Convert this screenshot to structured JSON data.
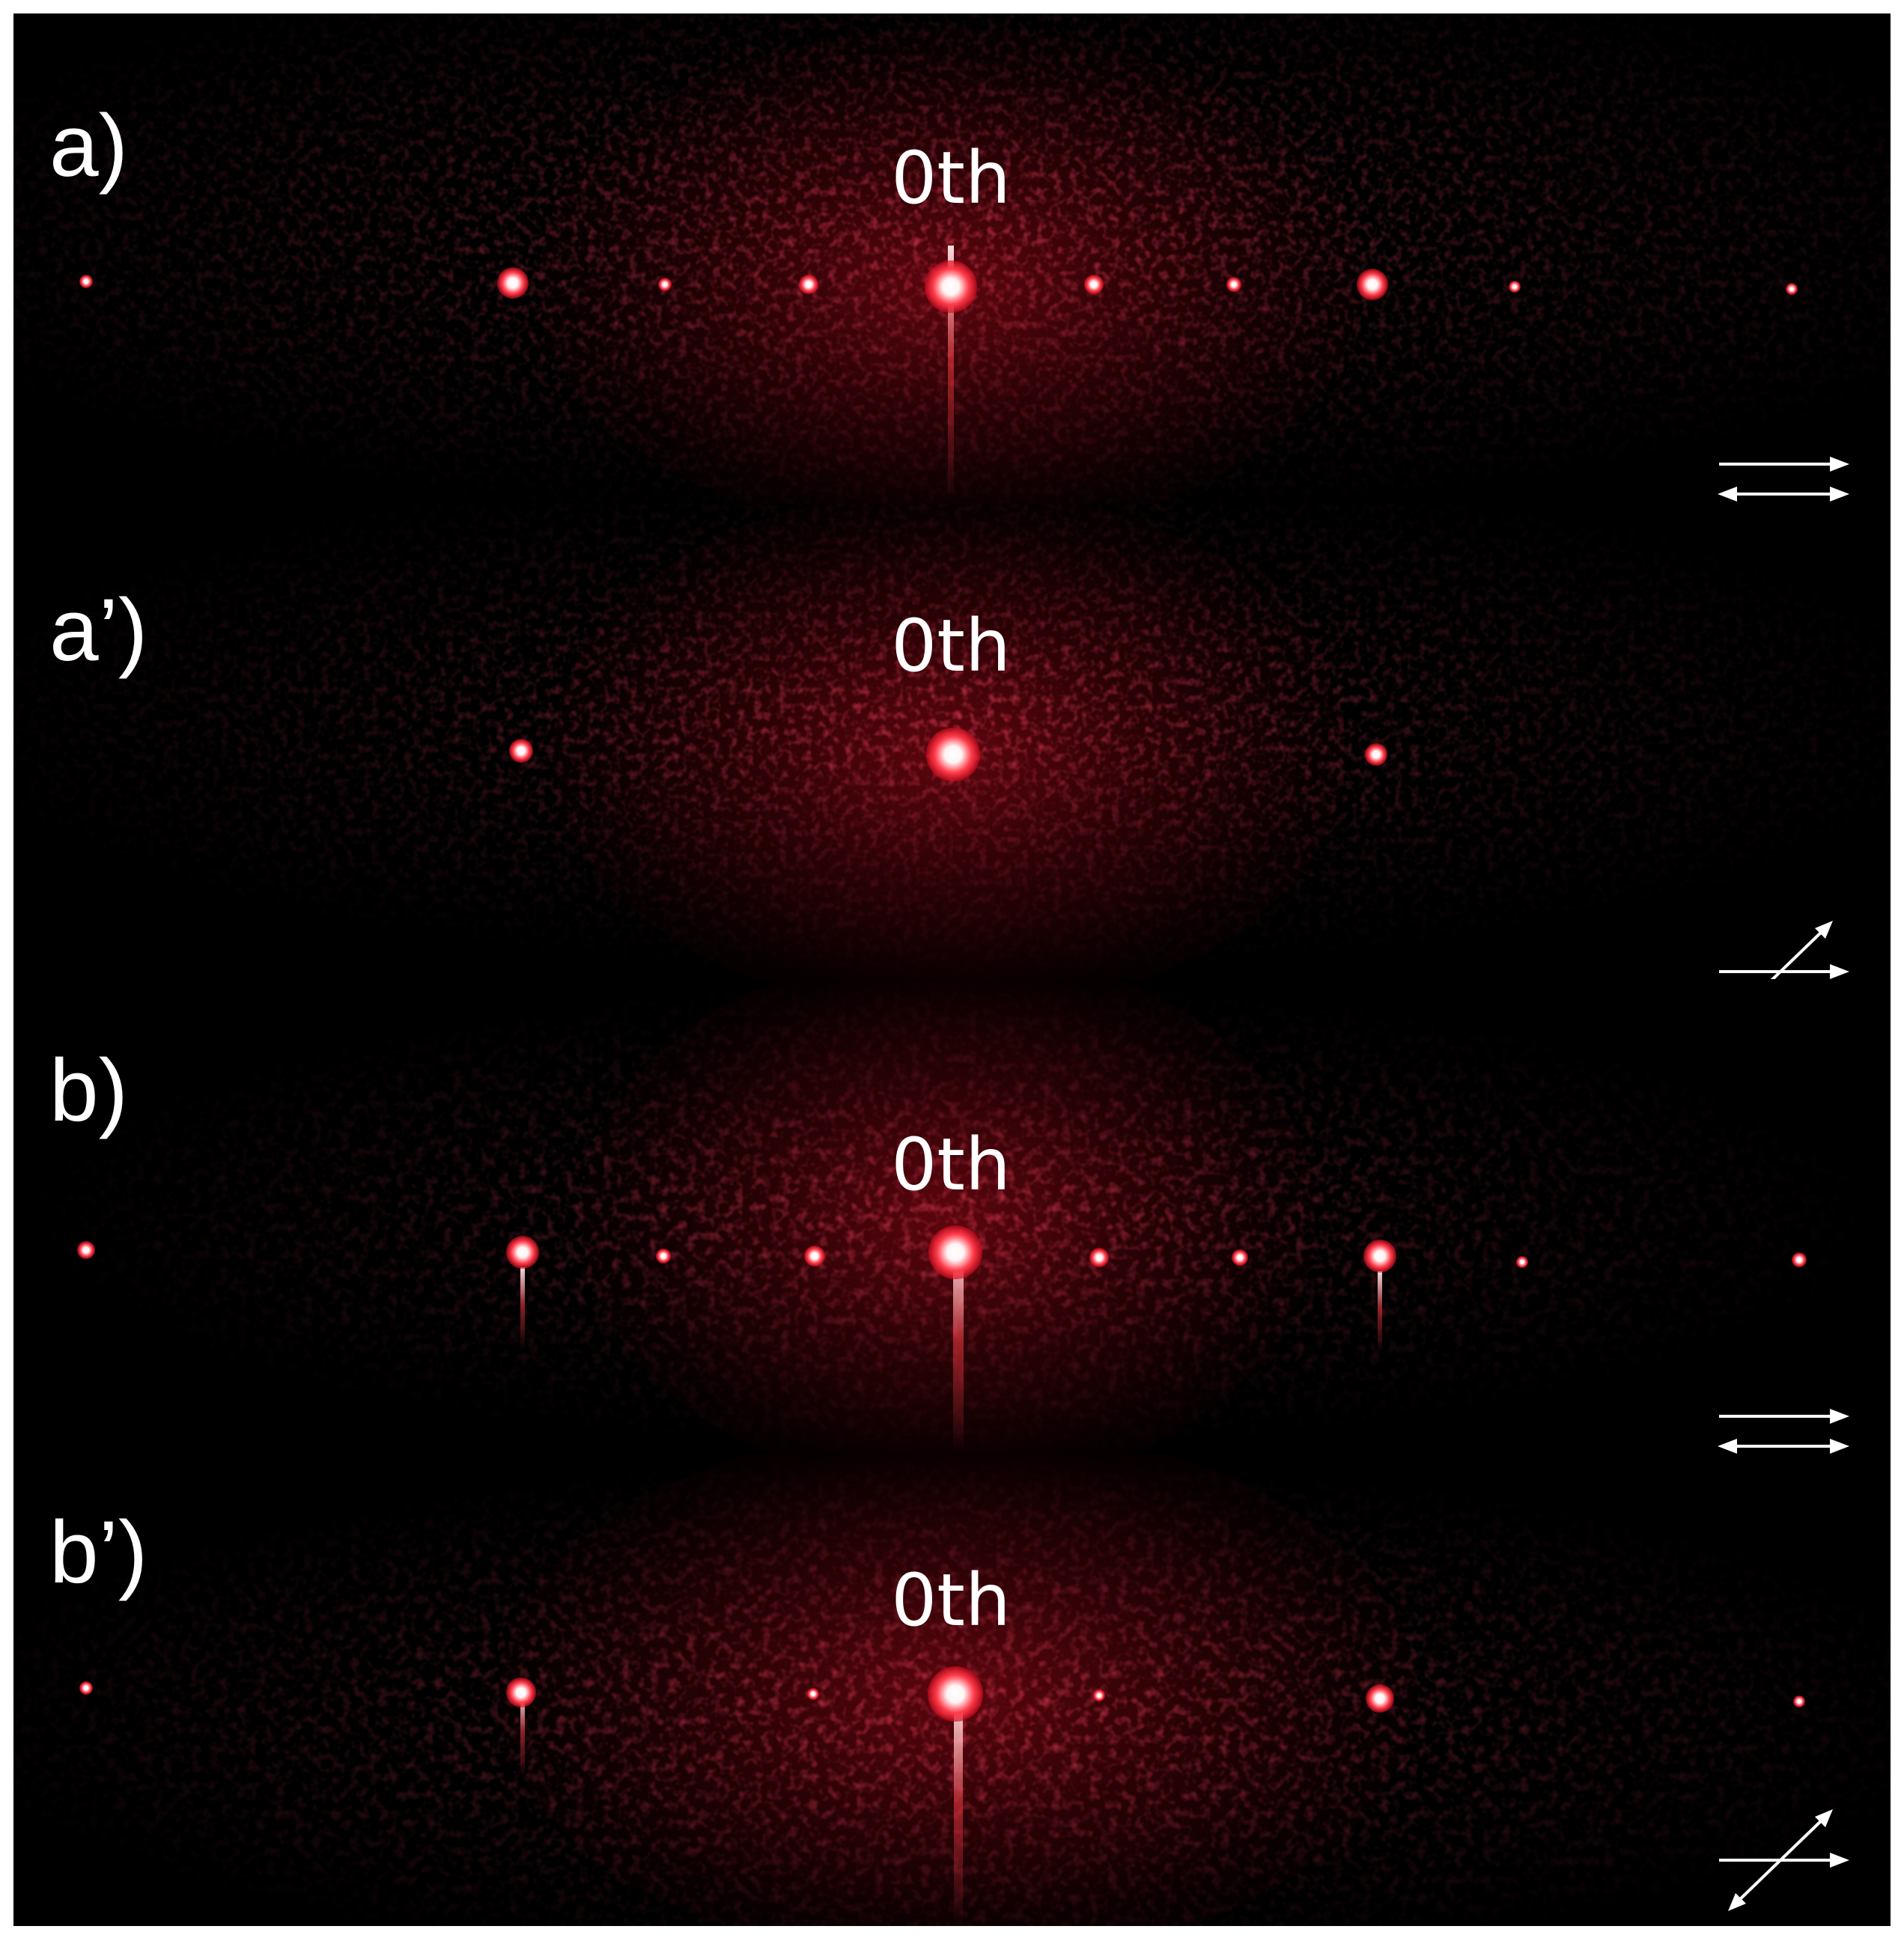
{
  "panels": [
    {
      "id": "a",
      "label": "a)",
      "order_label": "0th",
      "polarizer": "parallel"
    },
    {
      "id": "a2",
      "label": "a’)",
      "order_label": "0th",
      "polarizer": "crossed-45"
    },
    {
      "id": "b",
      "label": "b)",
      "order_label": "0th",
      "polarizer": "parallel"
    },
    {
      "id": "b2",
      "label": "b’)",
      "order_label": "0th",
      "polarizer": "crossed-45"
    }
  ],
  "colors": {
    "background": "#000000",
    "speckle": "#c8101e",
    "spot_core": "#ffffff",
    "text": "#ffffff"
  },
  "icons": {
    "parallel": "parallel-double-arrows-icon",
    "crossed": "crossed-double-arrows-icon"
  }
}
